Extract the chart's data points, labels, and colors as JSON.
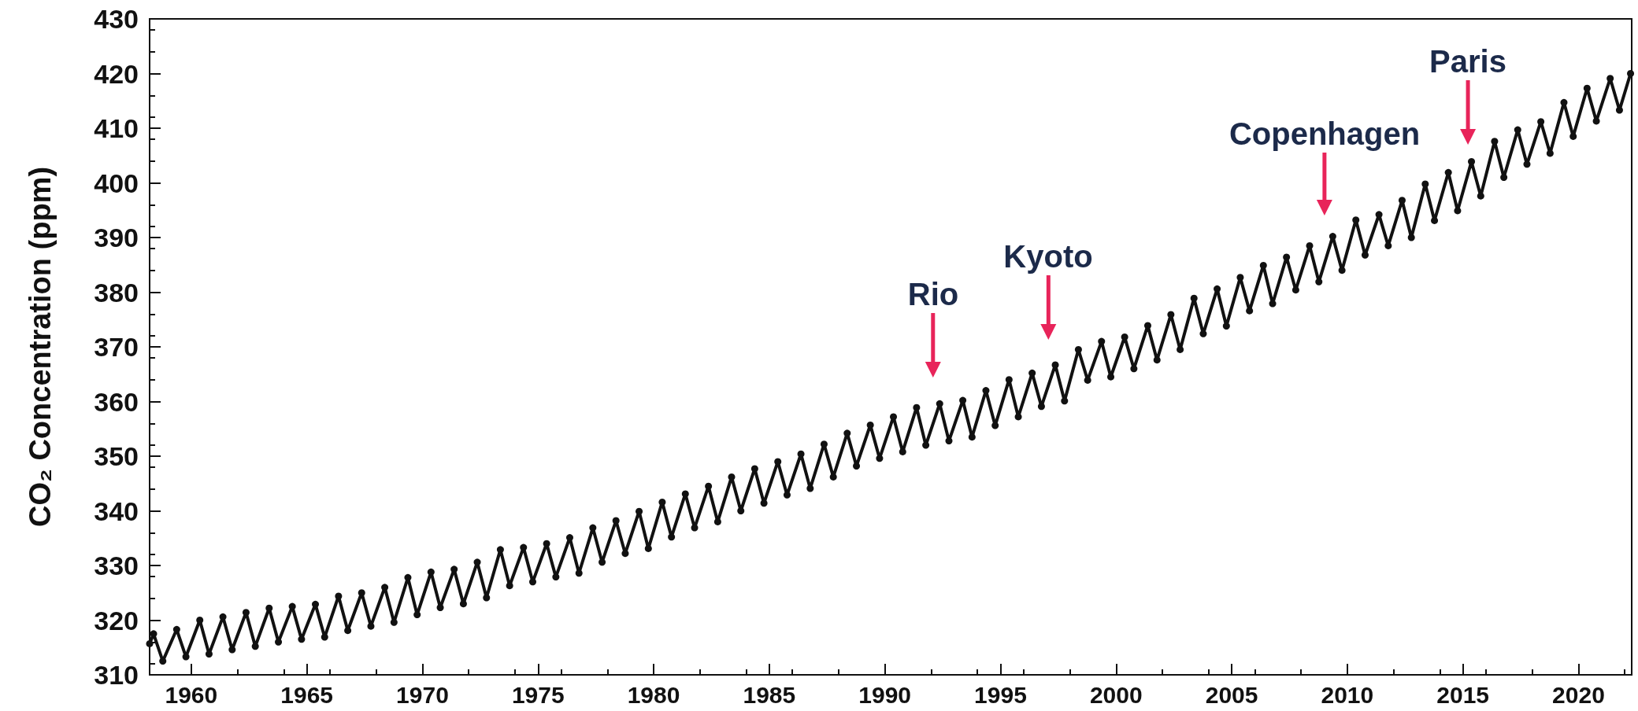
{
  "chart_data": {
    "type": "line",
    "ylabel": "CO₂ Concentration (ppm)",
    "xlim": [
      1958.2,
      2022.3
    ],
    "xticks": [
      1960,
      1965,
      1970,
      1975,
      1980,
      1985,
      1990,
      1995,
      2000,
      2005,
      2010,
      2015,
      2020
    ],
    "ylim": [
      310,
      430
    ],
    "yticks": [
      310,
      320,
      330,
      340,
      350,
      360,
      370,
      380,
      390,
      400,
      410,
      420,
      430
    ],
    "grid": false,
    "marker": "circle",
    "line_style": "solid",
    "annotations": [
      "Rio",
      "Kyoto",
      "Copenhagen",
      "Paris"
    ],
    "series": [
      {
        "color": "#111111",
        "x": [
          1958.2,
          1958.37,
          1958.77,
          1959.37,
          1959.77,
          1960.37,
          1960.77,
          1961.37,
          1961.77,
          1962.37,
          1962.77,
          1963.37,
          1963.77,
          1964.37,
          1964.77,
          1965.37,
          1965.77,
          1966.37,
          1966.77,
          1967.37,
          1967.77,
          1968.37,
          1968.77,
          1969.37,
          1969.77,
          1970.37,
          1970.77,
          1971.37,
          1971.77,
          1972.37,
          1972.77,
          1973.37,
          1973.77,
          1974.37,
          1974.77,
          1975.37,
          1975.77,
          1976.37,
          1976.77,
          1977.37,
          1977.77,
          1978.37,
          1978.77,
          1979.37,
          1979.77,
          1980.37,
          1980.77,
          1981.37,
          1981.77,
          1982.37,
          1982.77,
          1983.37,
          1983.77,
          1984.37,
          1984.77,
          1985.37,
          1985.77,
          1986.37,
          1986.77,
          1987.37,
          1987.77,
          1988.37,
          1988.77,
          1989.37,
          1989.77,
          1990.37,
          1990.77,
          1991.37,
          1991.77,
          1992.37,
          1992.77,
          1993.37,
          1993.77,
          1994.37,
          1994.77,
          1995.37,
          1995.77,
          1996.37,
          1996.77,
          1997.37,
          1997.77,
          1998.37,
          1998.77,
          1999.37,
          1999.77,
          2000.37,
          2000.77,
          2001.37,
          2001.77,
          2002.37,
          2002.77,
          2003.37,
          2003.77,
          2004.37,
          2004.77,
          2005.37,
          2005.77,
          2006.37,
          2006.77,
          2007.37,
          2007.77,
          2008.37,
          2008.77,
          2009.37,
          2009.77,
          2010.37,
          2010.77,
          2011.37,
          2011.77,
          2012.37,
          2012.77,
          2013.37,
          2013.77,
          2014.37,
          2014.77,
          2015.37,
          2015.77,
          2016.37,
          2016.77,
          2017.37,
          2017.77,
          2018.37,
          2018.77,
          2019.37,
          2019.77,
          2020.37,
          2020.77,
          2021.37,
          2021.77,
          2022.25
        ],
        "values": [
          315.7,
          317.5,
          312.5,
          318.3,
          313.3,
          320.0,
          313.8,
          320.6,
          314.6,
          321.4,
          315.2,
          322.2,
          316.0,
          322.5,
          316.5,
          322.9,
          316.9,
          324.4,
          318.1,
          325.0,
          318.9,
          326.0,
          319.6,
          327.8,
          321.0,
          328.8,
          322.3,
          329.3,
          323.0,
          330.6,
          324.1,
          332.9,
          326.3,
          333.3,
          327.0,
          334.0,
          327.9,
          335.1,
          328.6,
          336.9,
          330.6,
          338.2,
          332.2,
          339.9,
          333.1,
          341.6,
          335.2,
          343.1,
          336.9,
          344.5,
          338.0,
          346.2,
          340.0,
          347.7,
          341.4,
          349.0,
          342.9,
          350.4,
          344.1,
          352.2,
          346.2,
          354.2,
          348.2,
          355.7,
          349.6,
          357.2,
          350.8,
          358.9,
          352.0,
          359.6,
          352.8,
          360.2,
          353.5,
          362.0,
          355.6,
          364.0,
          357.2,
          365.2,
          359.1,
          366.7,
          360.1,
          369.5,
          363.9,
          371.0,
          364.5,
          371.8,
          366.0,
          373.9,
          367.6,
          375.9,
          369.5,
          378.9,
          372.4,
          380.6,
          373.8,
          382.7,
          376.6,
          384.9,
          377.9,
          386.4,
          380.4,
          388.5,
          381.9,
          390.2,
          384.0,
          393.2,
          386.8,
          394.2,
          388.5,
          396.8,
          390.0,
          399.8,
          393.1,
          401.9,
          394.9,
          403.9,
          397.6,
          407.6,
          401.0,
          409.7,
          403.4,
          411.2,
          405.4,
          414.7,
          408.5,
          417.3,
          411.3,
          419.1,
          413.3,
          420.0
        ]
      }
    ]
  }
}
